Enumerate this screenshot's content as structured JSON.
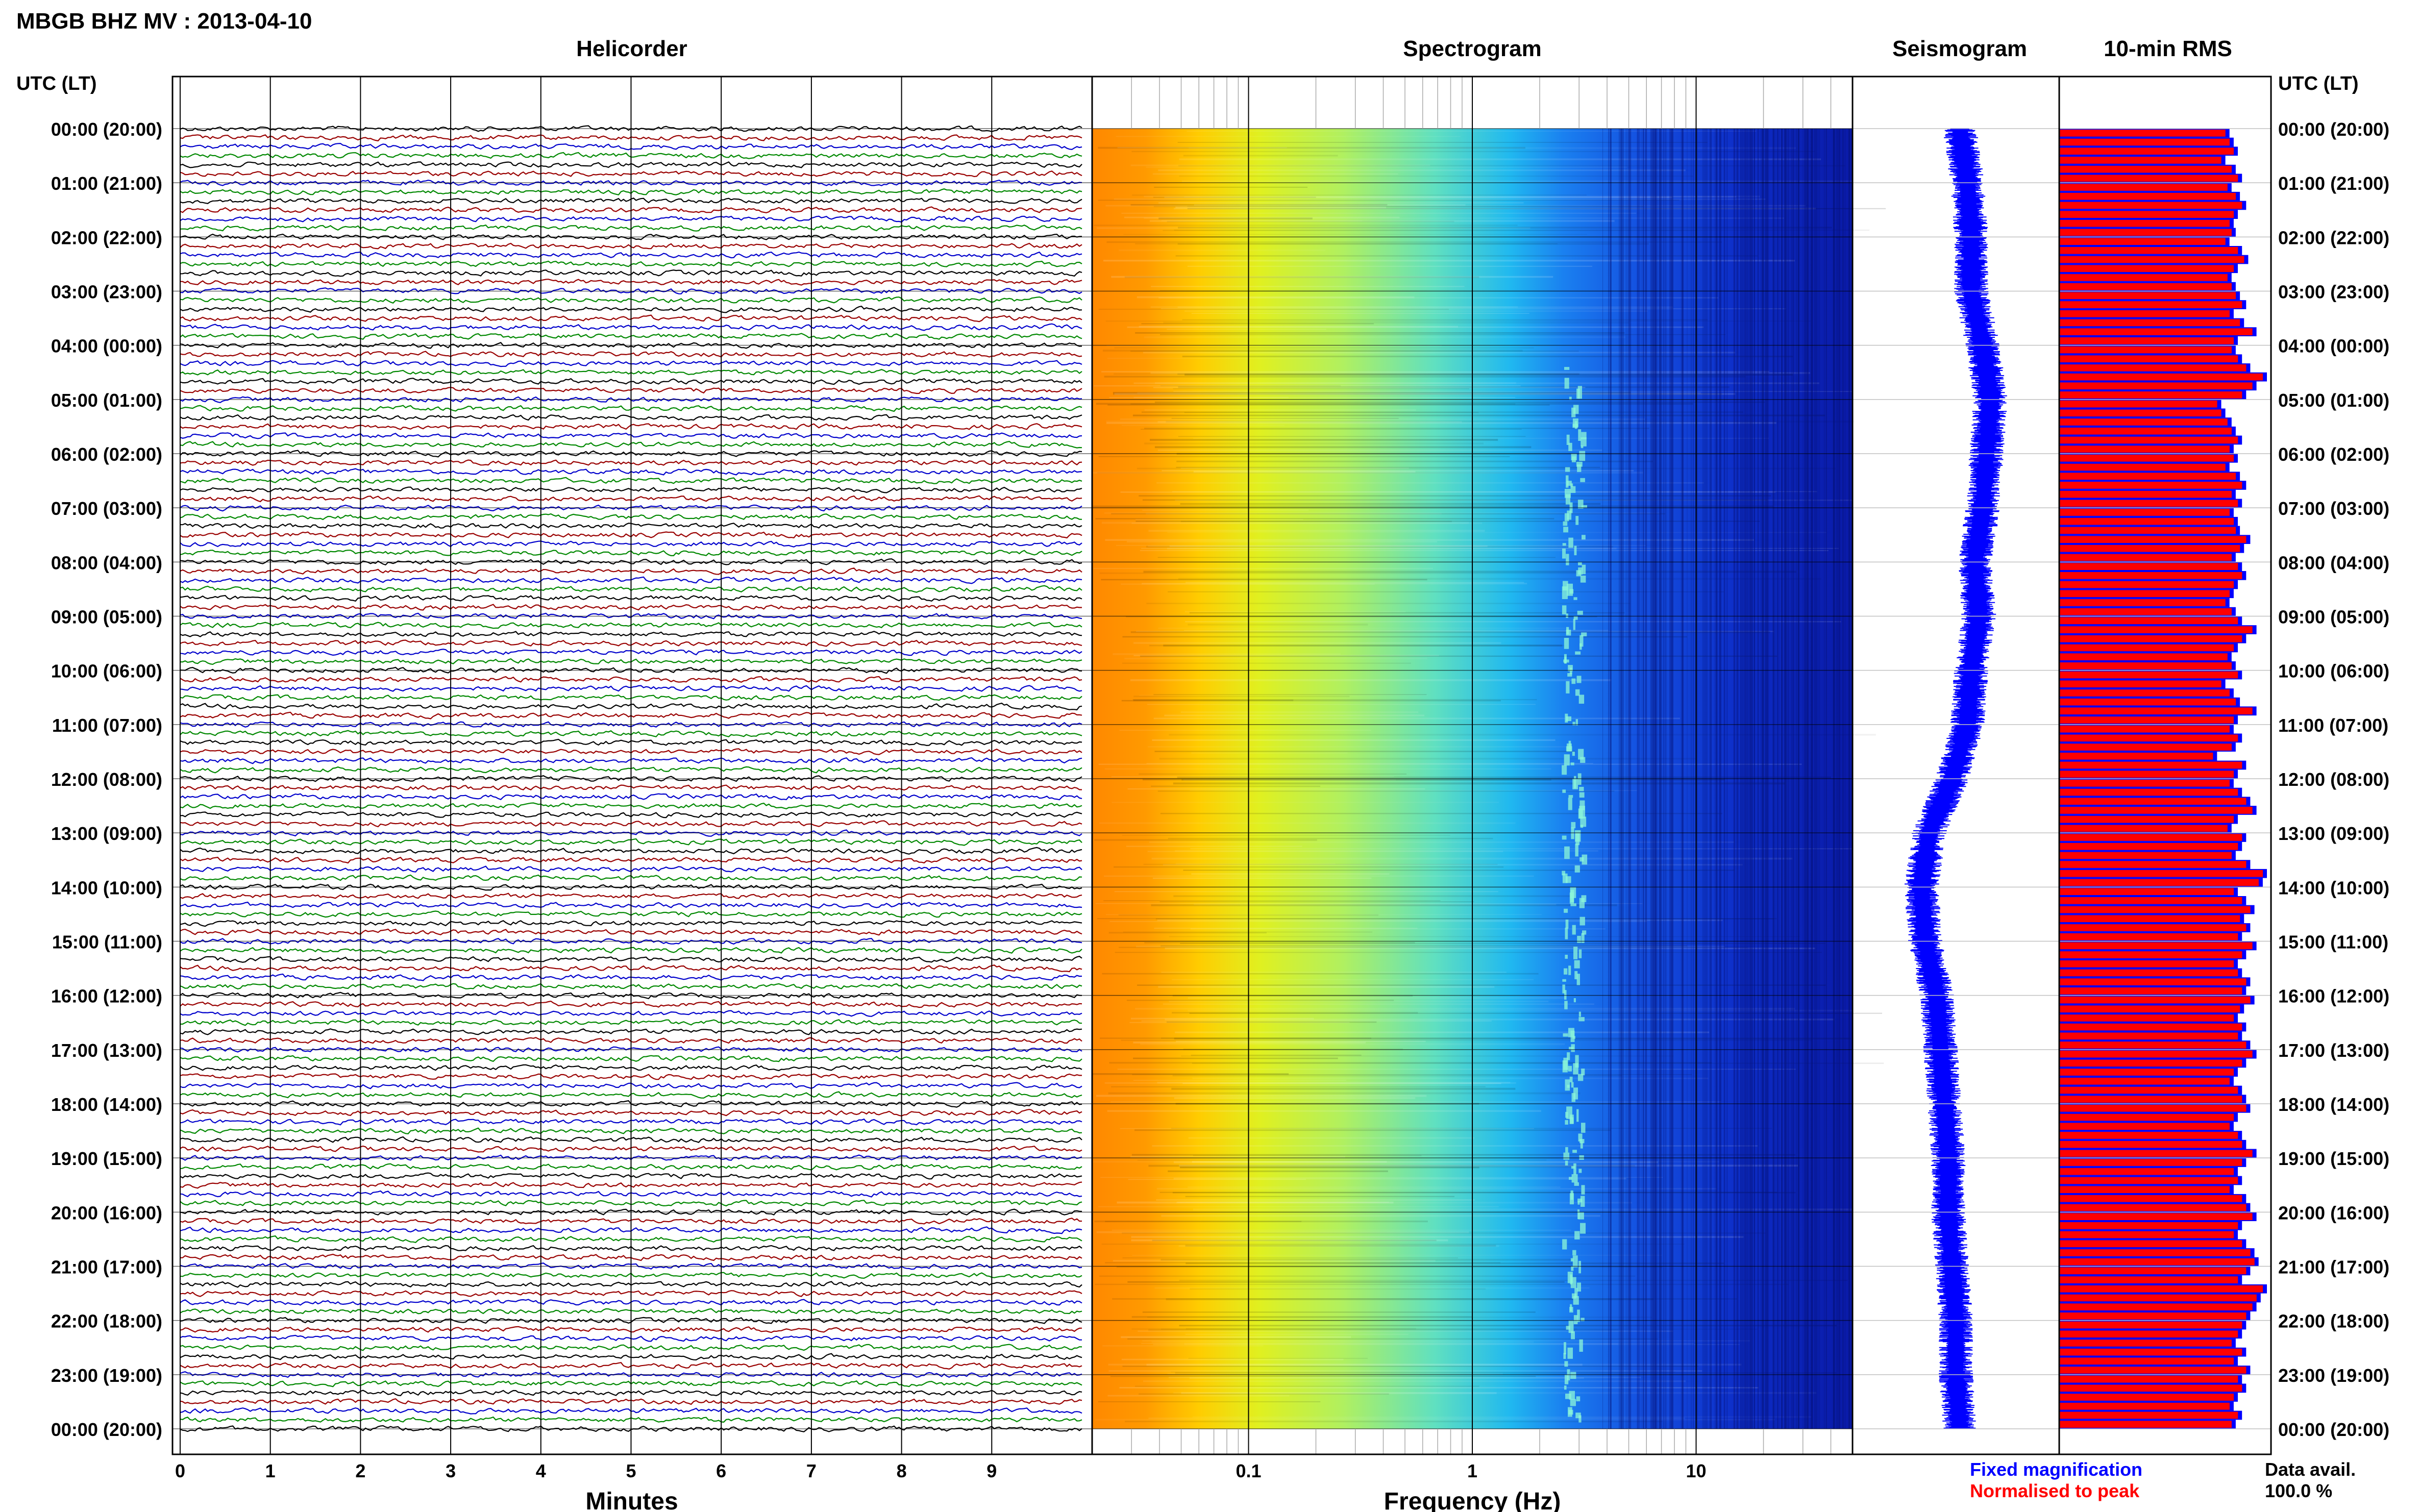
{
  "title": "MBGB BHZ MV : 2013-04-10",
  "panels": {
    "helicorder": "Helicorder",
    "spectrogram": "Spectrogram",
    "seismogram": "Seismogram",
    "rms": "10-min RMS"
  },
  "axis_left_header": "UTC (LT)",
  "axis_right_header": "UTC (LT)",
  "time_labels": [
    "00:00 (20:00)",
    "01:00 (21:00)",
    "02:00 (22:00)",
    "03:00 (23:00)",
    "04:00 (00:00)",
    "05:00 (01:00)",
    "06:00 (02:00)",
    "07:00 (03:00)",
    "08:00 (04:00)",
    "09:00 (05:00)",
    "10:00 (06:00)",
    "11:00 (07:00)",
    "12:00 (08:00)",
    "13:00 (09:00)",
    "14:00 (10:00)",
    "15:00 (11:00)",
    "16:00 (12:00)",
    "17:00 (13:00)",
    "18:00 (14:00)",
    "19:00 (15:00)",
    "20:00 (16:00)",
    "21:00 (17:00)",
    "22:00 (18:00)",
    "23:00 (19:00)",
    "00:00 (20:00)"
  ],
  "helicorder_xlabel": "Minutes",
  "helicorder_ticks": [
    "0",
    "1",
    "2",
    "3",
    "4",
    "5",
    "6",
    "7",
    "8",
    "9"
  ],
  "spectrogram_xlabel": "Frequency (Hz)",
  "spectrogram_ticks": [
    "0.1",
    "1",
    "10"
  ],
  "legend": {
    "fixed": "Fixed magnification",
    "normalised": "Normalised to peak",
    "fixed_color": "#0000ff",
    "normalised_color": "#ff0000"
  },
  "data_avail_label": "Data avail.",
  "data_avail_value": "100.0 %",
  "chart_data": [
    {
      "type": "line",
      "panel": "helicorder",
      "xlabel": "Minutes",
      "xlim": [
        0,
        10
      ],
      "xticks": [
        0,
        1,
        2,
        3,
        4,
        5,
        6,
        7,
        8,
        9
      ],
      "trace_colors": [
        "#000000",
        "#990000",
        "#0000cc",
        "#008800"
      ],
      "rows_per_hour": 6,
      "rows": 145,
      "ylim_utc_hours": [
        0,
        24
      ]
    },
    {
      "type": "heatmap",
      "panel": "spectrogram",
      "xlabel": "Frequency (Hz)",
      "xscale": "log",
      "xlim": [
        0.02,
        50
      ],
      "xticks": [
        0.1,
        1,
        10
      ],
      "colormap": "jet"
    },
    {
      "type": "line",
      "panel": "seismogram",
      "color": "#0000ff",
      "center_offset_by_hour": [
        0,
        0.2,
        0.3,
        0.3,
        0.6,
        0.8,
        0.7,
        0.6,
        0.4,
        0.5,
        0.3,
        0.2,
        -0.2,
        -0.8,
        -1.0,
        -0.9,
        -0.6,
        -0.5,
        -0.4,
        -0.3,
        -0.3,
        -0.2,
        -0.1,
        -0.1,
        0
      ]
    },
    {
      "type": "bar",
      "panel": "10-min RMS",
      "orientation": "horizontal",
      "series": [
        {
          "name": "Fixed magnification",
          "color": "#0000ff"
        },
        {
          "name": "Normalised to peak",
          "color": "#ff0000"
        }
      ],
      "bins": 144,
      "relative_values": [
        0.82,
        0.84,
        0.86,
        0.8,
        0.85,
        0.88,
        0.83,
        0.87,
        0.9,
        0.86,
        0.84,
        0.85,
        0.82,
        0.88,
        0.91,
        0.86,
        0.83,
        0.85,
        0.87,
        0.9,
        0.84,
        0.89,
        0.95,
        0.86,
        0.85,
        0.88,
        0.92,
        1.0,
        0.95,
        0.9,
        0.78,
        0.8,
        0.83,
        0.85,
        0.88,
        0.84,
        0.86,
        0.82,
        0.87,
        0.9,
        0.85,
        0.88,
        0.84,
        0.86,
        0.87,
        0.92,
        0.89,
        0.85,
        0.88,
        0.9,
        0.86,
        0.84,
        0.82,
        0.85,
        0.88,
        0.95,
        0.9,
        0.86,
        0.83,
        0.85,
        0.88,
        0.8,
        0.84,
        0.87,
        0.95,
        0.86,
        0.84,
        0.88,
        0.85,
        0.76,
        0.9,
        0.86,
        0.84,
        0.88,
        0.92,
        0.95,
        0.86,
        0.83,
        0.9,
        0.88,
        0.85,
        0.92,
        1.0,
        0.98,
        0.86,
        0.9,
        0.94,
        0.89,
        0.92,
        0.88,
        0.95,
        0.9,
        0.86,
        0.88,
        0.92,
        0.9,
        0.94,
        0.89,
        0.86,
        0.9,
        0.88,
        0.92,
        0.95,
        0.9,
        0.86,
        0.84,
        0.88,
        0.9,
        0.92,
        0.86,
        0.84,
        0.88,
        0.9,
        0.95,
        0.9,
        0.86,
        0.88,
        0.84,
        0.9,
        0.92,
        0.95,
        0.88,
        0.86,
        0.9,
        0.94,
        0.96,
        0.92,
        0.88,
        1.0,
        0.97,
        0.95,
        0.92,
        0.9,
        0.88,
        0.85,
        0.9,
        0.86,
        0.92,
        0.88,
        0.9,
        0.86,
        0.84,
        0.88,
        0.85
      ]
    }
  ]
}
